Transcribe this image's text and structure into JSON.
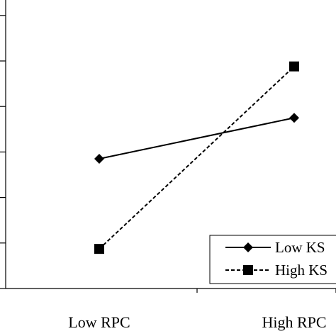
{
  "chart_data": {
    "type": "line",
    "title": "",
    "xlabel": "",
    "ylabel": "",
    "categories": [
      "Low RPC",
      "High RPC"
    ],
    "ylim": [
      0,
      7
    ],
    "y_ticks": [
      0,
      1,
      2,
      3,
      4,
      5,
      6,
      7
    ],
    "grid": false,
    "legend_position": "bottom-right",
    "series": [
      {
        "name": "Low KS",
        "values": [
          2.85,
          3.75
        ],
        "marker": "diamond",
        "line_style": "solid",
        "color": "#000000"
      },
      {
        "name": "High KS",
        "values": [
          0.87,
          4.88
        ],
        "marker": "square",
        "line_style": "dashed",
        "color": "#000000"
      }
    ]
  }
}
